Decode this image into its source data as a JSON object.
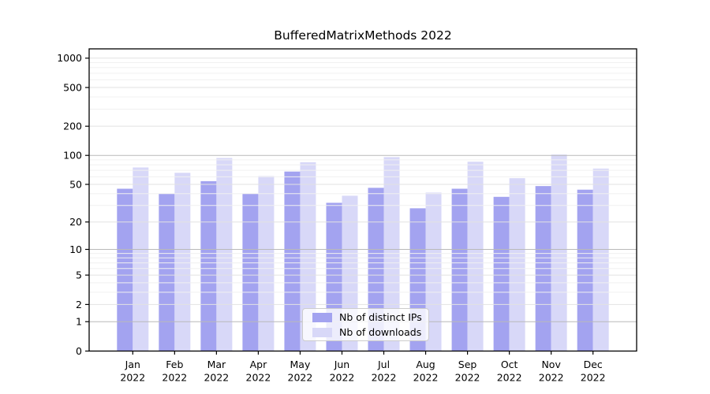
{
  "title": "BufferedMatrixMethods 2022",
  "chart_data": {
    "type": "bar",
    "title": "BufferedMatrixMethods 2022",
    "categories": [
      "Jan 2022",
      "Feb 2022",
      "Mar 2022",
      "Apr 2022",
      "May 2022",
      "Jun 2022",
      "Jul 2022",
      "Aug 2022",
      "Sep 2022",
      "Oct 2022",
      "Nov 2022",
      "Dec 2022"
    ],
    "series": [
      {
        "name": "Nb of distinct IPs",
        "key": "distinct-ips",
        "color": "#a3a3f0",
        "values": [
          45,
          40,
          54,
          40,
          68,
          32,
          46,
          28,
          45,
          37,
          48,
          44
        ]
      },
      {
        "name": "Nb of downloads",
        "key": "downloads",
        "color": "#d8d8f8",
        "values": [
          75,
          66,
          94,
          61,
          85,
          38,
          96,
          41,
          86,
          58,
          102,
          73
        ]
      }
    ],
    "xlabel": "",
    "ylabel": "",
    "yscale": "log1p",
    "yticks": [
      0,
      1,
      2,
      5,
      10,
      20,
      50,
      100,
      200,
      500,
      1000
    ],
    "ylim": [
      0,
      1250
    ],
    "grid": true,
    "legend_position": "lower center"
  }
}
